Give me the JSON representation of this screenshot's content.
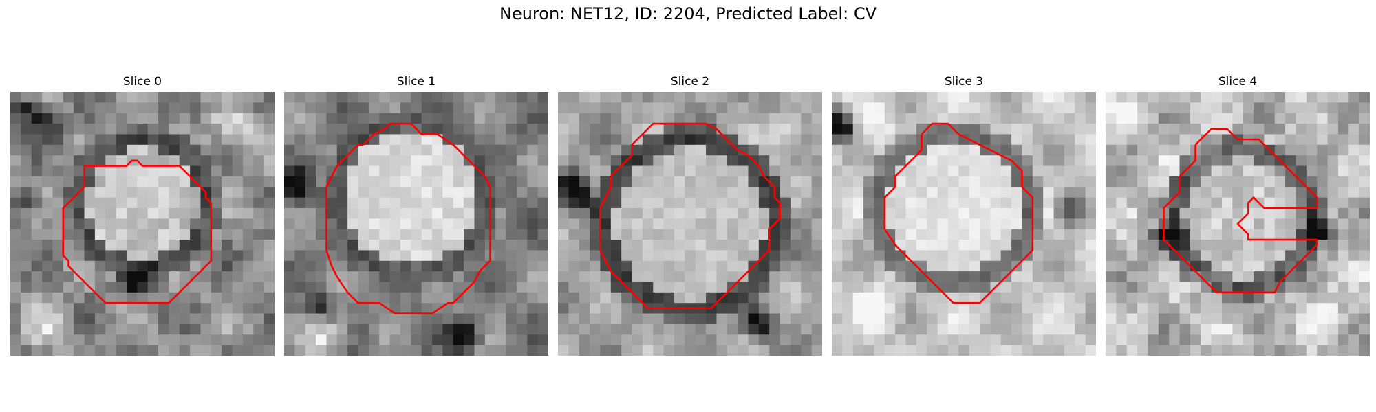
{
  "figure": {
    "title": "Neuron: NET12, ID: 2204, Predicted Label: CV"
  },
  "colors": {
    "contour": "#ff0000",
    "background": "#ffffff"
  },
  "panels": [
    {
      "title": "Slice 0"
    },
    {
      "title": "Slice 1"
    },
    {
      "title": "Slice 2"
    },
    {
      "title": "Slice 3"
    },
    {
      "title": "Slice 4"
    }
  ]
}
